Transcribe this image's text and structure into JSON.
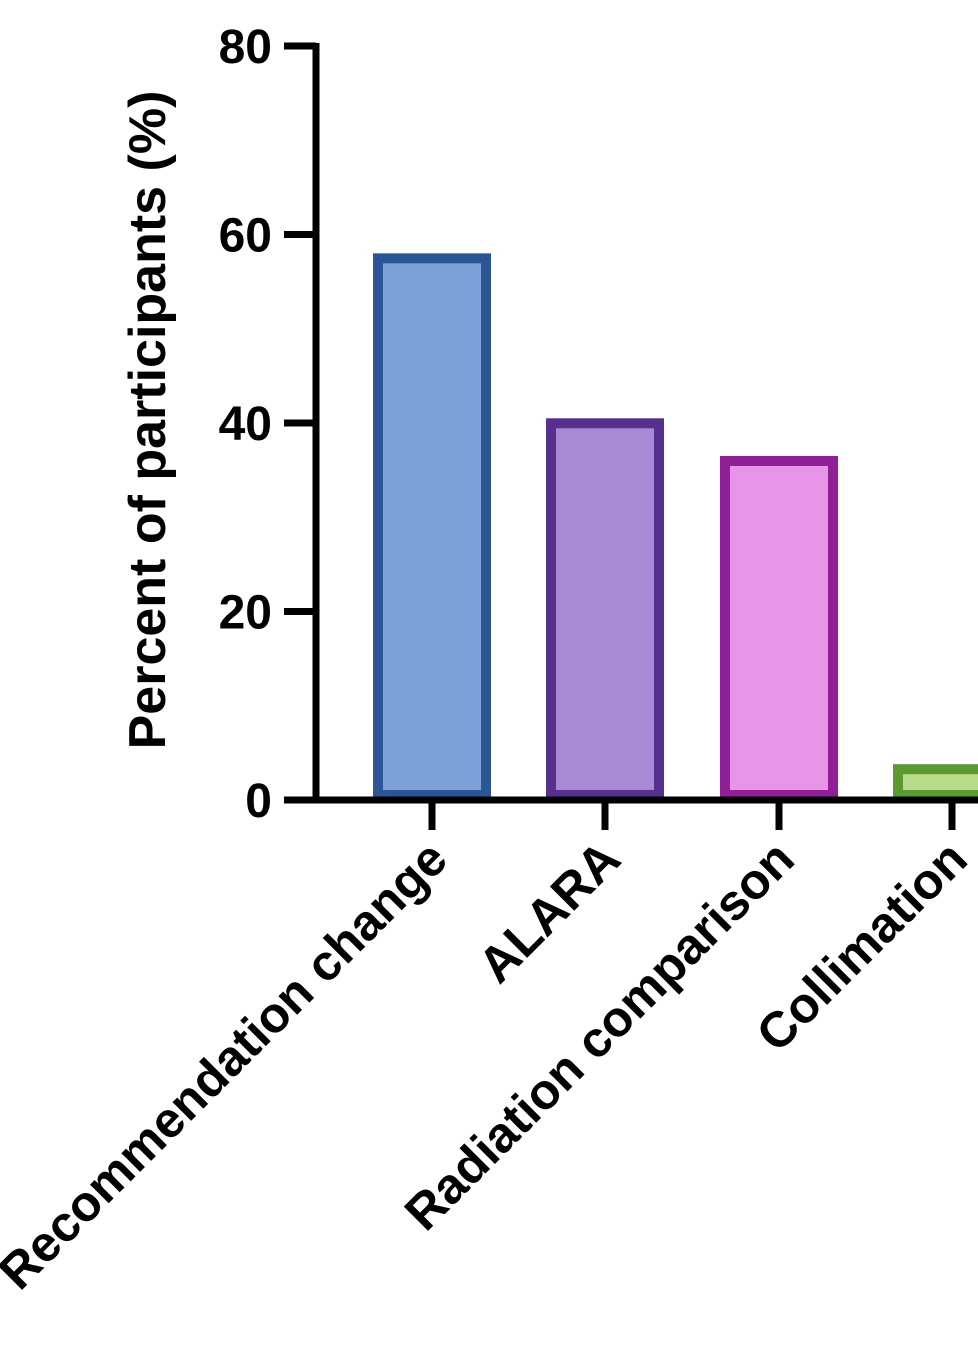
{
  "chart_data": {
    "type": "bar",
    "title": "",
    "xlabel": "",
    "ylabel": "Percent of participants (%)",
    "ylim": [
      0,
      80
    ],
    "yticks": [
      "0",
      "20",
      "40",
      "60",
      "80"
    ],
    "grid": false,
    "legend": "none",
    "categories": [
      "Recommendation change",
      "ALARA",
      "Radiation comparison",
      "Collimation"
    ],
    "values": [
      58,
      40.5,
      36.5,
      3.8
    ],
    "colors": {
      "fill": [
        "#7ba1d6",
        "#a68ad3",
        "#e895e8",
        "#b9dc8a"
      ],
      "stroke": [
        "#2b5594",
        "#55308f",
        "#901f97",
        "#5b9a30"
      ]
    }
  }
}
